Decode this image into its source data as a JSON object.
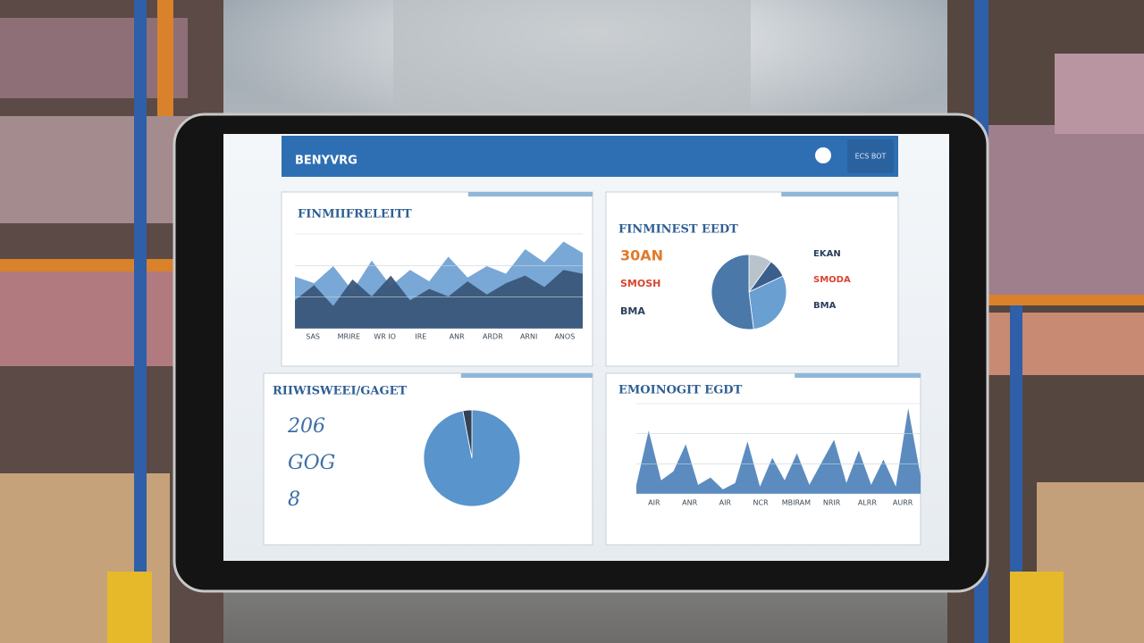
{
  "header": {
    "title": "BENYVRG",
    "badge": "ECS BOT"
  },
  "panels": [
    {
      "title": "FINMIIFRELEITT",
      "chart": {
        "type": "area",
        "ylim": [
          0,
          100
        ],
        "series": [
          {
            "color": "#6a9fd2",
            "values": [
              55,
              48,
              66,
              40,
              72,
              45,
              62,
              50,
              76,
              54,
              66,
              58,
              84,
              70,
              92,
              80
            ]
          },
          {
            "color": "#3a5679",
            "values": [
              30,
              46,
              24,
              52,
              34,
              56,
              30,
              42,
              34,
              50,
              36,
              48,
              56,
              44,
              62,
              58
            ]
          }
        ],
        "x_labels": [
          "SAS",
          "MRIRE",
          "WR IO",
          "IRE",
          "ANR",
          "ARDR",
          "ARNI",
          "ANOS"
        ]
      }
    },
    {
      "title": "FINMINEST EEDT",
      "legend_left": [
        {
          "label": "30AN",
          "color": "#e07a2c"
        },
        {
          "label": "SMOSH",
          "color": "#d8452f"
        },
        {
          "label": "BMA",
          "color": "#2a3f5c"
        }
      ],
      "legend_right": [
        {
          "label": "EKAN",
          "color": "#2a3f5c"
        },
        {
          "label": "SMODA",
          "color": "#d8452f"
        },
        {
          "label": "BMA",
          "color": "#2a3f5c"
        }
      ],
      "chart": {
        "type": "pie",
        "values": [
          10,
          8,
          30,
          52
        ],
        "colors": [
          "#b9c3cc",
          "#3a5f8c",
          "#6a9fd2",
          "#4a78a8"
        ]
      }
    },
    {
      "title": "RIIWISWEEI/GAGET",
      "numbers": [
        "206",
        "GOG",
        "8"
      ],
      "chart": {
        "type": "pie",
        "values": [
          97,
          3
        ],
        "colors": [
          "#5a94cc",
          "#2f4257"
        ]
      }
    },
    {
      "title": "EMOINOGIT EGDT",
      "chart": {
        "type": "area",
        "ylim": [
          0,
          100
        ],
        "series": [
          {
            "color": "#4a7fb8",
            "values": [
              10,
              70,
              15,
              25,
              55,
              10,
              18,
              5,
              12,
              58,
              8,
              40,
              15,
              45,
              10,
              35,
              60,
              12,
              48,
              10,
              38,
              8,
              95,
              20
            ]
          }
        ],
        "x_labels": [
          "AIR",
          "ANR",
          "AIR",
          "NCR",
          "MBIRAM",
          "NRIR",
          "ALRR",
          "AURR"
        ]
      }
    }
  ]
}
